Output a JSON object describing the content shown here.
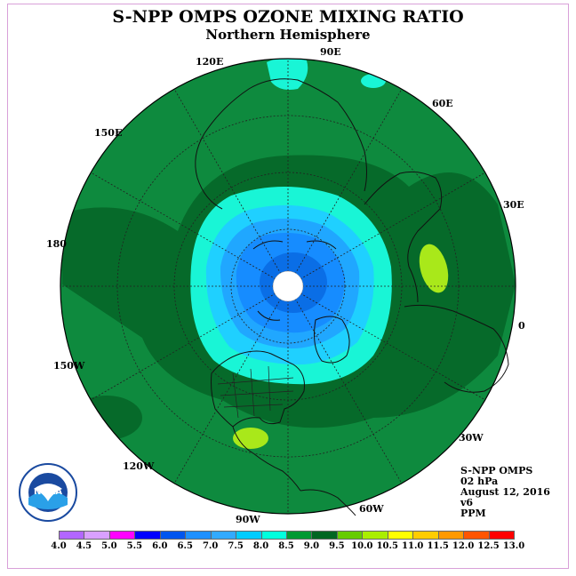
{
  "title": "S-NPP OMPS OZONE MIXING RATIO",
  "subtitle": "Northern Hemisphere",
  "longitude_labels": {
    "e90": "90E",
    "e60": "60E",
    "e30": "30E",
    "zero": "0",
    "w30": "30W",
    "w60": "60W",
    "w90": "90W",
    "w120": "120W",
    "w150": "150W",
    "d180": "180",
    "e150": "150E",
    "e120": "120E"
  },
  "info": {
    "instrument": "S-NPP OMPS",
    "level": "02 hPa",
    "date": "August 12, 2016",
    "version": "v6",
    "units": "PPM"
  },
  "logo": {
    "text": "NOAA",
    "icon": "noaa-logo-icon"
  },
  "colorbar": {
    "ticks": [
      "4.0",
      "4.5",
      "5.0",
      "5.5",
      "6.0",
      "6.5",
      "7.0",
      "7.5",
      "8.0",
      "8.5",
      "9.0",
      "9.5",
      "10.0",
      "10.5",
      "11.0",
      "11.5",
      "12.0",
      "12.5",
      "13.0"
    ],
    "colors": [
      "#b266ff",
      "#d9a0ff",
      "#ff00ff",
      "#0000ff",
      "#0055ee",
      "#1e90ff",
      "#33aaff",
      "#00ccff",
      "#00ffdd",
      "#009933",
      "#006622",
      "#66cc00",
      "#aaee00",
      "#ffff00",
      "#ffcc00",
      "#ff9900",
      "#ff5500",
      "#ff0000",
      "#8b4513"
    ]
  },
  "map_colors": {
    "outer_green": "#0e8a3e",
    "dark_green": "#066a2a",
    "cyan": "#19f5d6",
    "sky": "#1fd0ff",
    "light_blue": "#20a7ff",
    "blue": "#168cff",
    "deep_blue": "#0a6ee6",
    "yellow_green": "#a9e81a"
  }
}
